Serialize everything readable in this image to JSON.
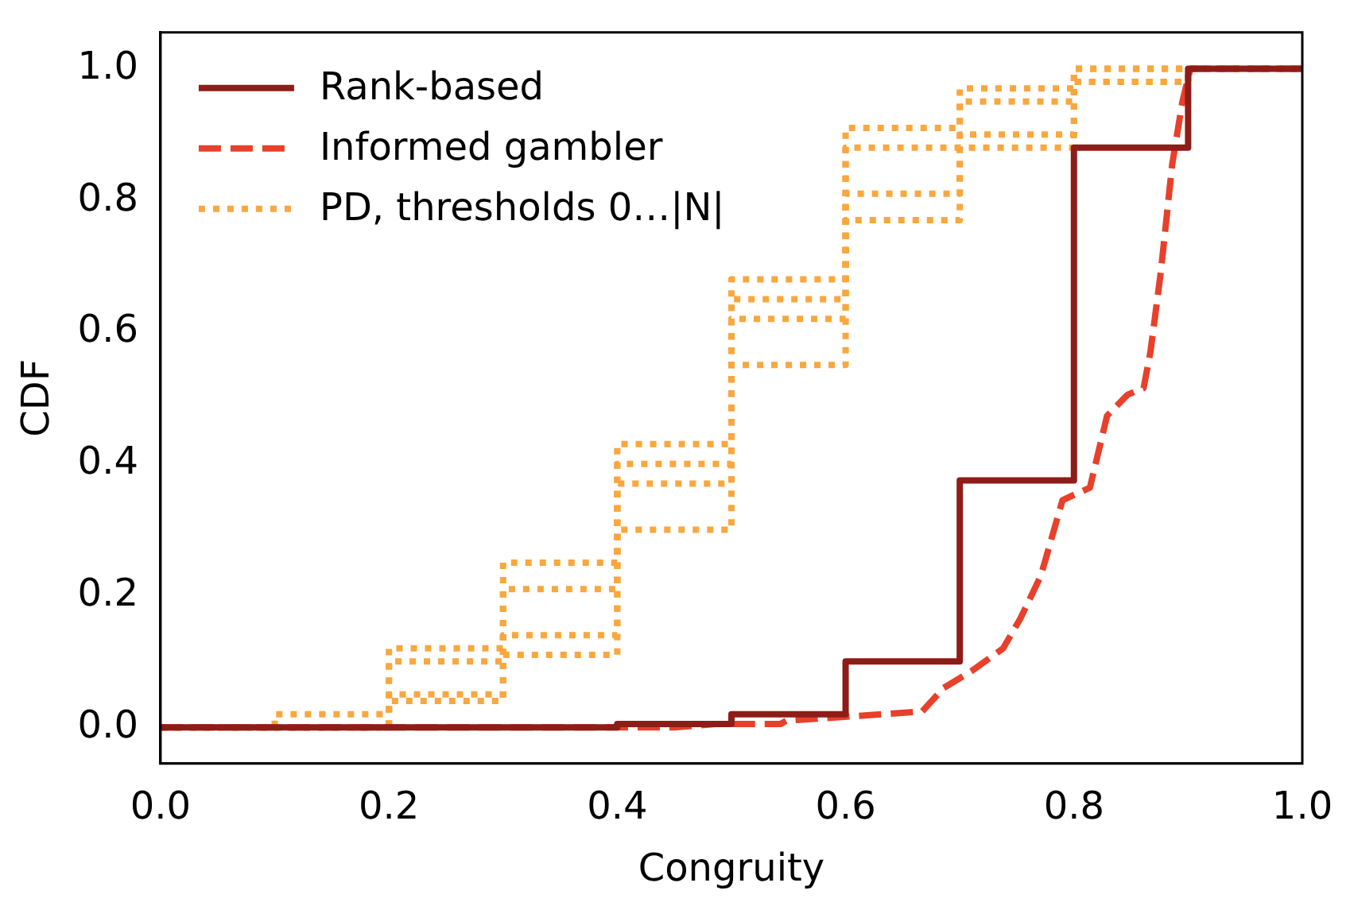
{
  "chart_data": {
    "type": "step",
    "xlabel": "Congruity",
    "ylabel": "CDF",
    "xlim": [
      0,
      1
    ],
    "xticks": [
      {
        "value": 0,
        "label": "0.0"
      },
      {
        "value": 0.2,
        "label": "0.2"
      },
      {
        "value": 0.4,
        "label": "0.4"
      },
      {
        "value": 0.6,
        "label": "0.6"
      },
      {
        "value": 0.8,
        "label": "0.8"
      },
      {
        "value": 1,
        "label": "1.0"
      }
    ],
    "ylim": [
      -0.055,
      1.055
    ],
    "yticks": [
      {
        "value": 0,
        "label": "0.0"
      },
      {
        "value": 0.2,
        "label": "0.2"
      },
      {
        "value": 0.4,
        "label": "0.4"
      },
      {
        "value": 0.6,
        "label": "0.6"
      },
      {
        "value": 0.8,
        "label": "0.8"
      },
      {
        "value": 1,
        "label": "1.0"
      }
    ],
    "grid": false,
    "legend": "top left",
    "series": [
      {
        "name": "Rank-based",
        "type": "step",
        "color": "#8e1c17",
        "line_style": "solid",
        "x": [
          0,
          0.4,
          0.5,
          0.6,
          0.7,
          0.8,
          0.9,
          1.0
        ],
        "values": [
          0,
          0.005,
          0.02,
          0.1,
          0.375,
          0.88,
          1.0,
          1.0
        ]
      },
      {
        "name": "Informed gambler",
        "type": "line",
        "color": "#e8402a",
        "line_style": "dashed",
        "x": [
          0,
          0.45,
          0.486,
          0.543,
          0.548,
          0.667,
          0.686,
          0.71,
          0.738,
          0.753,
          0.771,
          0.79,
          0.814,
          0.829,
          0.847,
          0.861,
          0.867,
          0.876,
          0.886,
          0.895,
          0.902,
          1.0
        ],
        "values": [
          0,
          0,
          0.005,
          0.005,
          0.01,
          0.024,
          0.06,
          0.085,
          0.12,
          0.165,
          0.23,
          0.345,
          0.364,
          0.473,
          0.505,
          0.515,
          0.57,
          0.69,
          0.854,
          0.95,
          1.0,
          1.0
        ]
      },
      {
        "name": "PD, thresholds 0…|N|",
        "type": "step",
        "color": "#f9a73e",
        "line_style": "dotted",
        "x": [
          0,
          0.1,
          0.2,
          0.3,
          0.4,
          0.5,
          0.6,
          0.7,
          0.8,
          0.9,
          1.0
        ],
        "values": [
          0,
          0.02,
          0.12,
          0.25,
          0.43,
          0.68,
          0.91,
          0.97,
          1.0,
          1.0,
          1.0
        ]
      },
      {
        "type": "step",
        "color": "#f9a73e",
        "line_style": "dotted",
        "x": [
          0,
          0.1,
          0.2,
          0.3,
          0.4,
          0.5,
          0.6,
          0.7,
          0.8,
          0.9,
          1.0
        ],
        "values": [
          0,
          0,
          0.1,
          0.21,
          0.4,
          0.65,
          0.88,
          0.95,
          1.0,
          1.0,
          1.0
        ]
      },
      {
        "type": "step",
        "color": "#f9a73e",
        "line_style": "dotted",
        "x": [
          0,
          0.1,
          0.2,
          0.3,
          0.4,
          0.5,
          0.6,
          0.7,
          0.8,
          0.9,
          1.0
        ],
        "values": [
          0,
          0,
          0.05,
          0.14,
          0.37,
          0.62,
          0.81,
          0.9,
          0.98,
          1.0,
          1.0
        ]
      },
      {
        "type": "step",
        "color": "#f9a73e",
        "line_style": "dotted",
        "x": [
          0,
          0.1,
          0.2,
          0.3,
          0.4,
          0.5,
          0.6,
          0.7,
          0.8,
          0.9,
          1.0
        ],
        "values": [
          0,
          0,
          0.04,
          0.11,
          0.3,
          0.55,
          0.77,
          0.88,
          0.98,
          1.0,
          1.0
        ]
      }
    ]
  }
}
